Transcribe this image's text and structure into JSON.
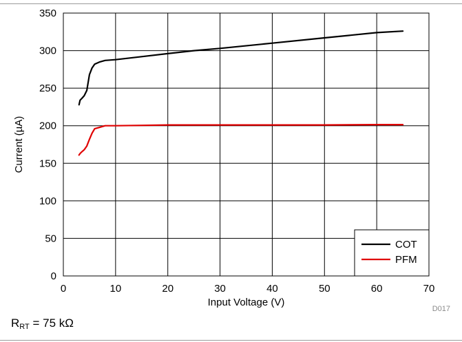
{
  "chart_data": {
    "type": "line",
    "xlabel": "Input Voltage (V)",
    "ylabel": "Current (µA)",
    "xlim": [
      0,
      70
    ],
    "ylim": [
      0,
      350
    ],
    "xticks": [
      0,
      10,
      20,
      30,
      40,
      50,
      60,
      70
    ],
    "yticks": [
      0,
      50,
      100,
      150,
      200,
      250,
      300,
      350
    ],
    "grid": true,
    "legend_position": "bottom-right",
    "series": [
      {
        "name": "COT",
        "color": "#000000",
        "x": [
          3,
          3.2,
          3.5,
          4,
          4.5,
          5,
          5.5,
          6,
          7,
          8,
          10,
          15,
          20,
          25,
          30,
          40,
          50,
          60,
          65
        ],
        "y": [
          228,
          234,
          236,
          240,
          247,
          268,
          277,
          282,
          285,
          287,
          288,
          292,
          296,
          300,
          303,
          310,
          317,
          324,
          326
        ]
      },
      {
        "name": "PFM",
        "color": "#e00000",
        "x": [
          3,
          3.2,
          3.5,
          4,
          4.5,
          5,
          5.5,
          6,
          7,
          8,
          10,
          15,
          20,
          30,
          40,
          50,
          60,
          65
        ],
        "y": [
          161,
          163,
          165,
          168,
          173,
          182,
          190,
          196,
          198,
          200,
          200,
          200.5,
          201,
          201,
          201,
          201,
          201.5,
          201.5
        ]
      }
    ]
  },
  "figure_id": "D017",
  "caption": {
    "prefix": "R",
    "subscript": "RT",
    "suffix": " = 75 kΩ"
  }
}
